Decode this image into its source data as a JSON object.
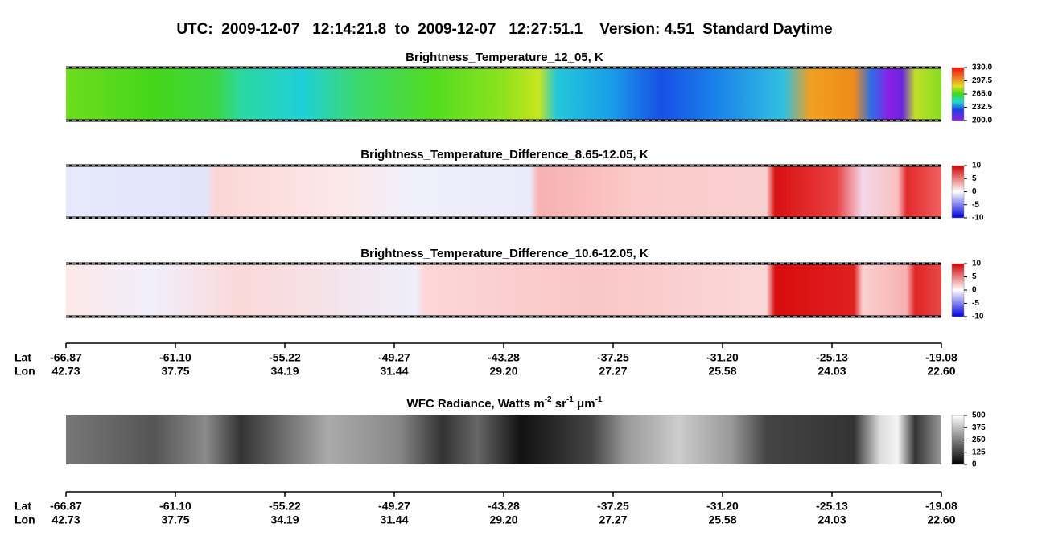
{
  "header": {
    "title": "UTC:  2009-12-07   12:14:21.8  to  2009-12-07   12:27:51.1    Version: 4.51  Standard Daytime"
  },
  "panels": [
    {
      "title": "Brightness_Temperature_12_05, K",
      "colorbar_ticks": [
        "330.0",
        "297.5",
        "265.0",
        "232.5",
        "200.0"
      ]
    },
    {
      "title": "Brightness_Temperature_Difference_8.65-12.05, K",
      "colorbar_ticks": [
        "10",
        "5",
        "0",
        "-5",
        "-10"
      ]
    },
    {
      "title": "Brightness_Temperature_Difference_10.6-12.05, K",
      "colorbar_ticks": [
        "10",
        "5",
        "0",
        "-5",
        "-10"
      ]
    },
    {
      "title_parts": [
        {
          "text": "WFC Radiance, Watts m",
          "sup": false
        },
        {
          "text": "-2",
          "sup": true
        },
        {
          "text": " sr",
          "sup": false
        },
        {
          "text": "-1",
          "sup": true
        },
        {
          "text": " μm",
          "sup": false
        },
        {
          "text": "-1",
          "sup": true
        }
      ],
      "colorbar_ticks": [
        "500",
        "375",
        "250",
        "125",
        "0"
      ]
    }
  ],
  "axes": [
    {
      "lat_label": "Lat",
      "lon_label": "Lon",
      "lat": [
        "-66.87",
        "-61.10",
        "-55.22",
        "-49.27",
        "-43.28",
        "-37.25",
        "-31.20",
        "-25.13",
        "-19.08"
      ],
      "lon": [
        "42.73",
        "37.75",
        "34.19",
        "31.44",
        "29.20",
        "27.27",
        "25.58",
        "24.03",
        "22.60"
      ]
    },
    {
      "lat_label": "Lat",
      "lon_label": "Lon",
      "lat": [
        "-66.87",
        "-61.10",
        "-55.22",
        "-49.27",
        "-43.28",
        "-37.25",
        "-31.20",
        "-25.13",
        "-19.08"
      ],
      "lon": [
        "42.73",
        "37.75",
        "34.19",
        "31.44",
        "29.20",
        "27.27",
        "25.58",
        "24.03",
        "22.60"
      ]
    }
  ]
}
